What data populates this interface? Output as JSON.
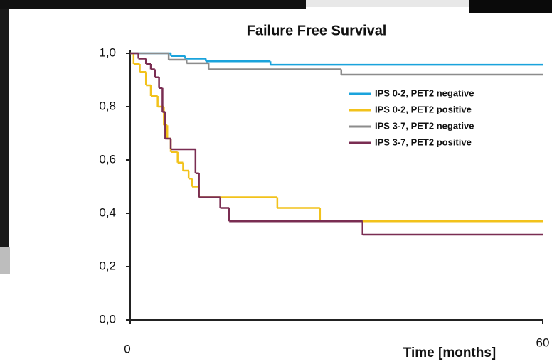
{
  "chart_data": {
    "type": "step",
    "title": "Failure Free Survival",
    "x_label": "Time [months]",
    "xlim": [
      0,
      60
    ],
    "xticks": [
      0,
      60
    ],
    "ylim": [
      0,
      1
    ],
    "yticks": [
      {
        "value": 0,
        "label": "0,0"
      },
      {
        "value": 0.2,
        "label": "0,2"
      },
      {
        "value": 0.4,
        "label": "0,4"
      },
      {
        "value": 0.6,
        "label": "0,6"
      },
      {
        "value": 0.8,
        "label": "0,8"
      },
      {
        "value": 1,
        "label": "1,0"
      }
    ],
    "series": [
      {
        "name": "IPS 0-2, PET2 negative",
        "color": "#1aa3dc",
        "x": [
          0,
          5.9,
          8.0,
          11.0,
          20.4
        ],
        "values": [
          1,
          0.99,
          0.98,
          0.97,
          0.957
        ]
      },
      {
        "name": "IPS 0-2, PET2 positive",
        "color": "#f2c21b",
        "x": [
          0,
          0.5,
          1.4,
          2.3,
          3.0,
          4.0,
          4.9,
          5.4,
          5.9,
          6.9,
          7.7,
          8.5,
          9.0,
          10.0,
          21.4,
          27.6
        ],
        "values": [
          1,
          0.96,
          0.93,
          0.88,
          0.84,
          0.8,
          0.73,
          0.68,
          0.63,
          0.59,
          0.56,
          0.53,
          0.5,
          0.46,
          0.42,
          0.37
        ]
      },
      {
        "name": "IPS 3-7, PET2 negative",
        "color": "#8c8c8c",
        "x": [
          0,
          5.6,
          8.2,
          11.4,
          30.7
        ],
        "values": [
          1,
          0.976,
          0.963,
          0.94,
          0.92
        ]
      },
      {
        "name": "IPS 3-7, PET2 positive",
        "color": "#7a2d52",
        "x": [
          0,
          1.2,
          2.3,
          3.0,
          3.6,
          4.2,
          4.7,
          5.1,
          5.9,
          9.5,
          10.0,
          13.1,
          14.4,
          33.8
        ],
        "values": [
          1,
          0.98,
          0.96,
          0.94,
          0.91,
          0.87,
          0.78,
          0.68,
          0.64,
          0.55,
          0.46,
          0.42,
          0.37,
          0.32
        ]
      }
    ]
  }
}
